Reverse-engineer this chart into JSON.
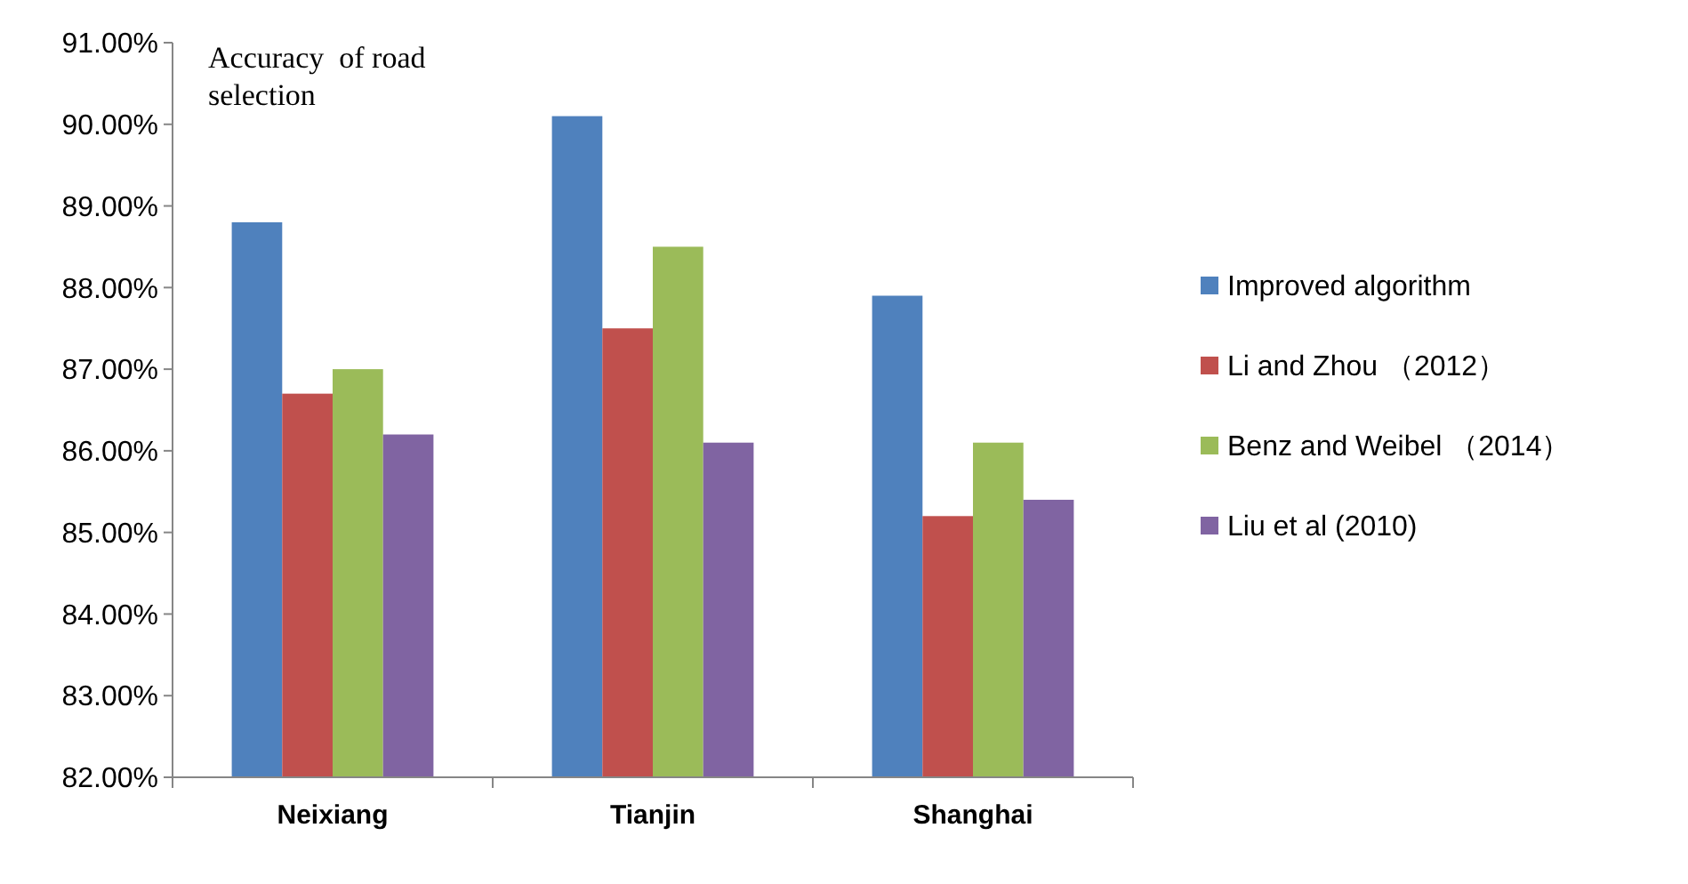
{
  "chart_data": {
    "type": "bar",
    "ylabel": "Accuracy  of road selection",
    "categories": [
      "Neixiang",
      "Tianjin",
      "Shanghai"
    ],
    "series": [
      {
        "name": "Improved algorithm",
        "color": "#4f81bd",
        "values": [
          88.8,
          90.1,
          87.9
        ]
      },
      {
        "name": "Li and Zhou （2012）",
        "color": "#c0504d",
        "values": [
          86.7,
          87.5,
          85.2
        ]
      },
      {
        "name": "Benz and Weibel （2014）",
        "color": "#9bbb59",
        "values": [
          87.0,
          88.5,
          86.1
        ]
      },
      {
        "name": "Liu et al (2010)",
        "color": "#8064a2",
        "values": [
          86.2,
          86.1,
          85.4
        ]
      }
    ],
    "ylim": [
      82,
      91
    ],
    "yticks": [
      {
        "value": 82,
        "label": "82.00%"
      },
      {
        "value": 83,
        "label": "83.00%"
      },
      {
        "value": 84,
        "label": "84.00%"
      },
      {
        "value": 85,
        "label": "85.00%"
      },
      {
        "value": 86,
        "label": "86.00%"
      },
      {
        "value": 87,
        "label": "87.00%"
      },
      {
        "value": 88,
        "label": "88.00%"
      },
      {
        "value": 89,
        "label": "89.00%"
      },
      {
        "value": 90,
        "label": "90.00%"
      },
      {
        "value": 91,
        "label": "91.00%"
      }
    ],
    "grid": false,
    "legend": "right"
  }
}
